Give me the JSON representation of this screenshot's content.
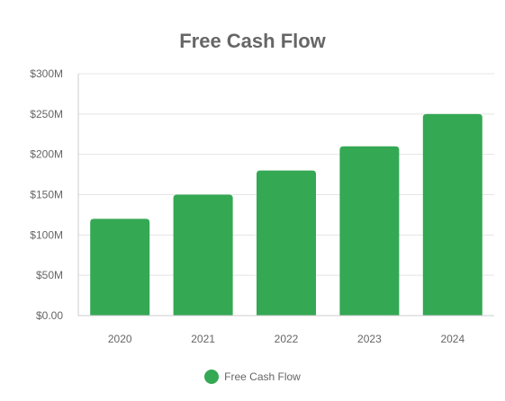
{
  "chart_data": {
    "type": "bar",
    "title": "Free Cash Flow",
    "xlabel": "",
    "ylabel": "",
    "categories": [
      "2020",
      "2021",
      "2022",
      "2023",
      "2024"
    ],
    "series": [
      {
        "name": "Free Cash Flow",
        "values": [
          120,
          150,
          180,
          210,
          250
        ],
        "color": "#34a853"
      }
    ],
    "ylim": [
      0,
      300
    ],
    "yticks": [
      0,
      50,
      100,
      150,
      200,
      250,
      300
    ],
    "ytick_labels": [
      "$0.00",
      "$50M",
      "$100M",
      "$150M",
      "$200M",
      "$250M",
      "$300M"
    ],
    "grid": true,
    "legend_position": "bottom"
  },
  "colors": {
    "bar": "#34a853",
    "grid": "#e5e5e5",
    "axis": "#cccccc",
    "text": "#666666"
  }
}
